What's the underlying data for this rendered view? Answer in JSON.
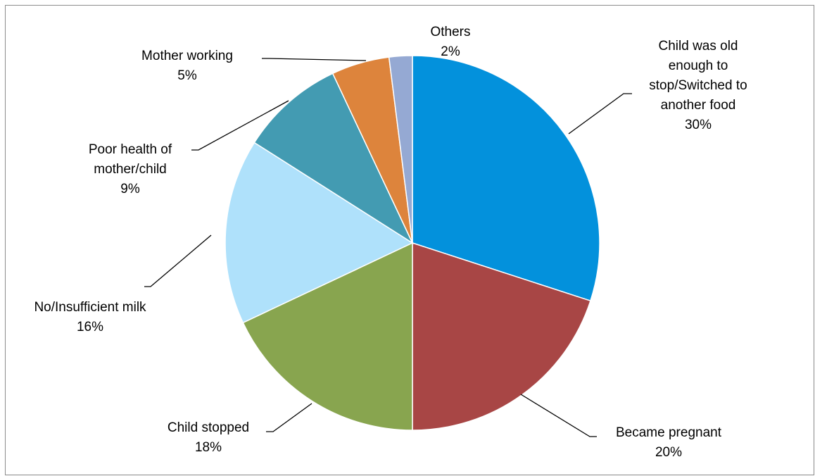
{
  "chart_data": {
    "type": "pie",
    "start_angle_deg": 0,
    "direction": "clockwise",
    "slices": [
      {
        "label_lines": [
          "Child was old",
          "enough to",
          "stop/Switched to",
          "another food"
        ],
        "value": 30,
        "value_label": "30%",
        "color": "#0391DC"
      },
      {
        "label_lines": [
          "Became pregnant"
        ],
        "value": 20,
        "value_label": "20%",
        "color": "#A84645"
      },
      {
        "label_lines": [
          "Child stopped"
        ],
        "value": 18,
        "value_label": "18%",
        "color": "#88A54F"
      },
      {
        "label_lines": [
          "No/Insufficient milk"
        ],
        "value": 16,
        "value_label": "16%",
        "color": "#AFE1FB"
      },
      {
        "label_lines": [
          "Poor health of",
          "mother/child"
        ],
        "value": 9,
        "value_label": "9%",
        "color": "#439BB2"
      },
      {
        "label_lines": [
          "Mother working"
        ],
        "value": 5,
        "value_label": "5%",
        "color": "#DD843C"
      },
      {
        "label_lines": [
          "Others"
        ],
        "value": 2,
        "value_label": "2%",
        "color": "#95A9D3"
      }
    ],
    "title": "",
    "legend": "none",
    "data_labels": "outside-with-leader-lines"
  }
}
